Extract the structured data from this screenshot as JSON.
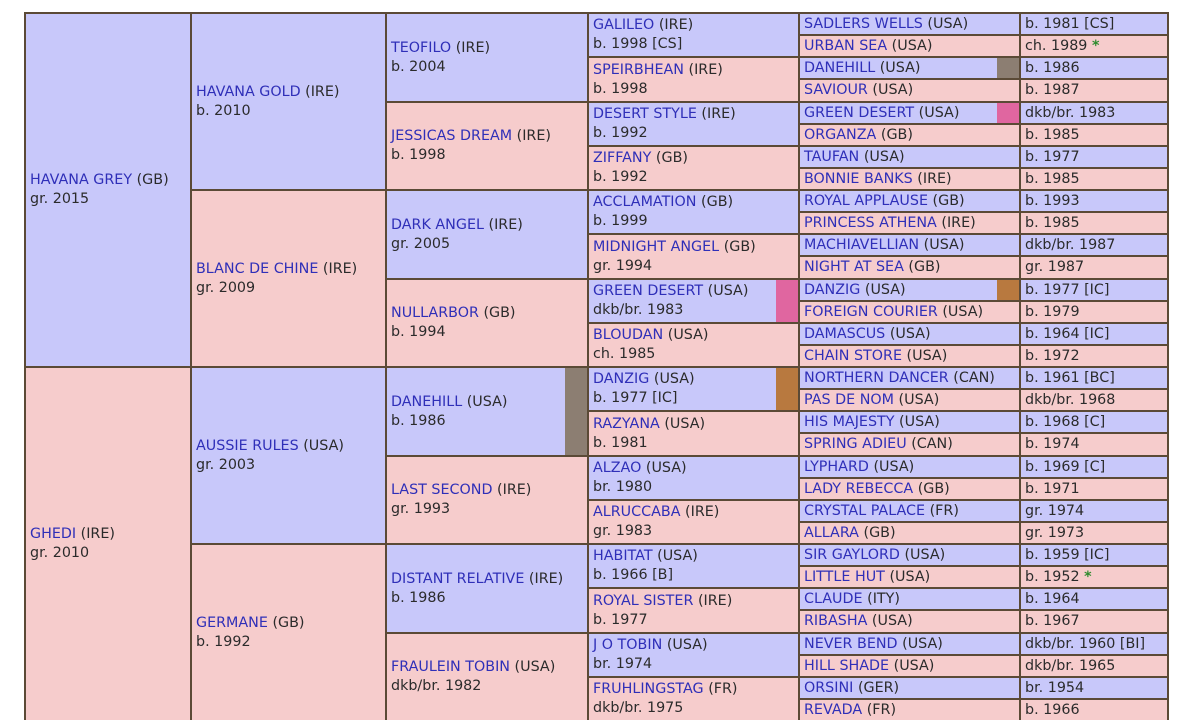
{
  "topstrip": ", ,, ,,",
  "colors": {
    "sire_bg": "#c8c8fa",
    "dam_bg": "#f6cccc",
    "border": "#5b4a36",
    "name": "#2f2fb8",
    "inbreed_pink": "#e066a0",
    "inbreed_gray": "#8c7e72",
    "inbreed_brown": "#b8793f",
    "star": "#2e8b2e"
  },
  "g1": [
    {
      "name": "HAVANA GREY",
      "country": "(GB)",
      "info": "gr. 2015"
    },
    {
      "name": "GHEDI",
      "country": "(IRE)",
      "info": "gr. 2010"
    }
  ],
  "g2": [
    {
      "name": "HAVANA GOLD",
      "country": "(IRE)",
      "info": "b. 2010"
    },
    {
      "name": "BLANC DE CHINE",
      "country": "(IRE)",
      "info": "gr. 2009"
    },
    {
      "name": "AUSSIE RULES",
      "country": "(USA)",
      "info": "gr. 2003"
    },
    {
      "name": "GERMANE",
      "country": "(GB)",
      "info": "b. 1992"
    }
  ],
  "g3": [
    {
      "name": "TEOFILO",
      "country": "(IRE)",
      "info": "b. 2004"
    },
    {
      "name": "JESSICAS DREAM",
      "country": "(IRE)",
      "info": "b. 1998"
    },
    {
      "name": "DARK ANGEL",
      "country": "(IRE)",
      "info": "gr. 2005"
    },
    {
      "name": "NULLARBOR",
      "country": "(GB)",
      "info": "b. 1994"
    },
    {
      "name": "DANEHILL",
      "country": "(USA)",
      "info": "b. 1986"
    },
    {
      "name": "LAST SECOND",
      "country": "(IRE)",
      "info": "gr. 1993"
    },
    {
      "name": "DISTANT RELATIVE",
      "country": "(IRE)",
      "info": "b. 1986"
    },
    {
      "name": "FRAULEIN TOBIN",
      "country": "(USA)",
      "info": "dkb/br. 1982"
    }
  ],
  "g4": [
    {
      "name": "GALILEO",
      "country": "(IRE)",
      "info": "b. 1998 [CS]"
    },
    {
      "name": "SPEIRBHEAN",
      "country": "(IRE)",
      "info": "b. 1998"
    },
    {
      "name": "DESERT STYLE",
      "country": "(IRE)",
      "info": "b. 1992"
    },
    {
      "name": "ZIFFANY",
      "country": "(GB)",
      "info": "b. 1992"
    },
    {
      "name": "ACCLAMATION",
      "country": "(GB)",
      "info": "b. 1999"
    },
    {
      "name": "MIDNIGHT ANGEL",
      "country": "(GB)",
      "info": "gr. 1994"
    },
    {
      "name": "GREEN DESERT",
      "country": "(USA)",
      "info": "dkb/br. 1983"
    },
    {
      "name": "BLOUDAN",
      "country": "(USA)",
      "info": "ch. 1985"
    },
    {
      "name": "DANZIG",
      "country": "(USA)",
      "info": "b. 1977 [IC]"
    },
    {
      "name": "RAZYANA",
      "country": "(USA)",
      "info": "b. 1981"
    },
    {
      "name": "ALZAO",
      "country": "(USA)",
      "info": "br. 1980"
    },
    {
      "name": "ALRUCCABA",
      "country": "(IRE)",
      "info": "gr. 1983"
    },
    {
      "name": "HABITAT",
      "country": "(USA)",
      "info": "b. 1966 [B]"
    },
    {
      "name": "ROYAL SISTER",
      "country": "(IRE)",
      "info": "b. 1977"
    },
    {
      "name": "J O TOBIN",
      "country": "(USA)",
      "info": "br. 1974"
    },
    {
      "name": "FRUHLINGSTAG",
      "country": "(FR)",
      "info": "dkb/br. 1975"
    }
  ],
  "g5": [
    {
      "name": "SADLERS WELLS",
      "country": "(USA)",
      "info": "b. 1981 [CS]"
    },
    {
      "name": "URBAN SEA",
      "country": "(USA)",
      "info": "ch. 1989",
      "star": "*"
    },
    {
      "name": "DANEHILL",
      "country": "(USA)",
      "info": "b. 1986"
    },
    {
      "name": "SAVIOUR",
      "country": "(USA)",
      "info": "b. 1987"
    },
    {
      "name": "GREEN DESERT",
      "country": "(USA)",
      "info": "dkb/br. 1983"
    },
    {
      "name": "ORGANZA",
      "country": "(GB)",
      "info": "b. 1985"
    },
    {
      "name": "TAUFAN",
      "country": "(USA)",
      "info": "b. 1977"
    },
    {
      "name": "BONNIE BANKS",
      "country": "(IRE)",
      "info": "b. 1985"
    },
    {
      "name": "ROYAL APPLAUSE",
      "country": "(GB)",
      "info": "b. 1993"
    },
    {
      "name": "PRINCESS ATHENA",
      "country": "(IRE)",
      "info": "b. 1985"
    },
    {
      "name": "MACHIAVELLIAN",
      "country": "(USA)",
      "info": "dkb/br. 1987"
    },
    {
      "name": "NIGHT AT SEA",
      "country": "(GB)",
      "info": "gr. 1987"
    },
    {
      "name": "DANZIG",
      "country": "(USA)",
      "info": "b. 1977 [IC]"
    },
    {
      "name": "FOREIGN COURIER",
      "country": "(USA)",
      "info": "b. 1979"
    },
    {
      "name": "DAMASCUS",
      "country": "(USA)",
      "info": "b. 1964 [IC]"
    },
    {
      "name": "CHAIN STORE",
      "country": "(USA)",
      "info": "b. 1972"
    },
    {
      "name": "NORTHERN DANCER",
      "country": "(CAN)",
      "info": "b. 1961 [BC]"
    },
    {
      "name": "PAS DE NOM",
      "country": "(USA)",
      "info": "dkb/br. 1968"
    },
    {
      "name": "HIS MAJESTY",
      "country": "(USA)",
      "info": "b. 1968 [C]"
    },
    {
      "name": "SPRING ADIEU",
      "country": "(CAN)",
      "info": "b. 1974"
    },
    {
      "name": "LYPHARD",
      "country": "(USA)",
      "info": "b. 1969 [C]"
    },
    {
      "name": "LADY REBECCA",
      "country": "(GB)",
      "info": "b. 1971"
    },
    {
      "name": "CRYSTAL PALACE",
      "country": "(FR)",
      "info": "gr. 1974"
    },
    {
      "name": "ALLARA",
      "country": "(GB)",
      "info": "gr. 1973"
    },
    {
      "name": "SIR GAYLORD",
      "country": "(USA)",
      "info": "b. 1959 [IC]"
    },
    {
      "name": "LITTLE HUT",
      "country": "(USA)",
      "info": "b. 1952",
      "star": "*"
    },
    {
      "name": "CLAUDE",
      "country": "(ITY)",
      "info": "b. 1964"
    },
    {
      "name": "RIBASHA",
      "country": "(USA)",
      "info": "b. 1967"
    },
    {
      "name": "NEVER BEND",
      "country": "(USA)",
      "info": "dkb/br. 1960 [BI]"
    },
    {
      "name": "HILL SHADE",
      "country": "(USA)",
      "info": "dkb/br. 1965"
    },
    {
      "name": "ORSINI",
      "country": "(GER)",
      "info": "br. 1954"
    },
    {
      "name": "REVADA",
      "country": "(FR)",
      "info": "b. 1966"
    }
  ]
}
